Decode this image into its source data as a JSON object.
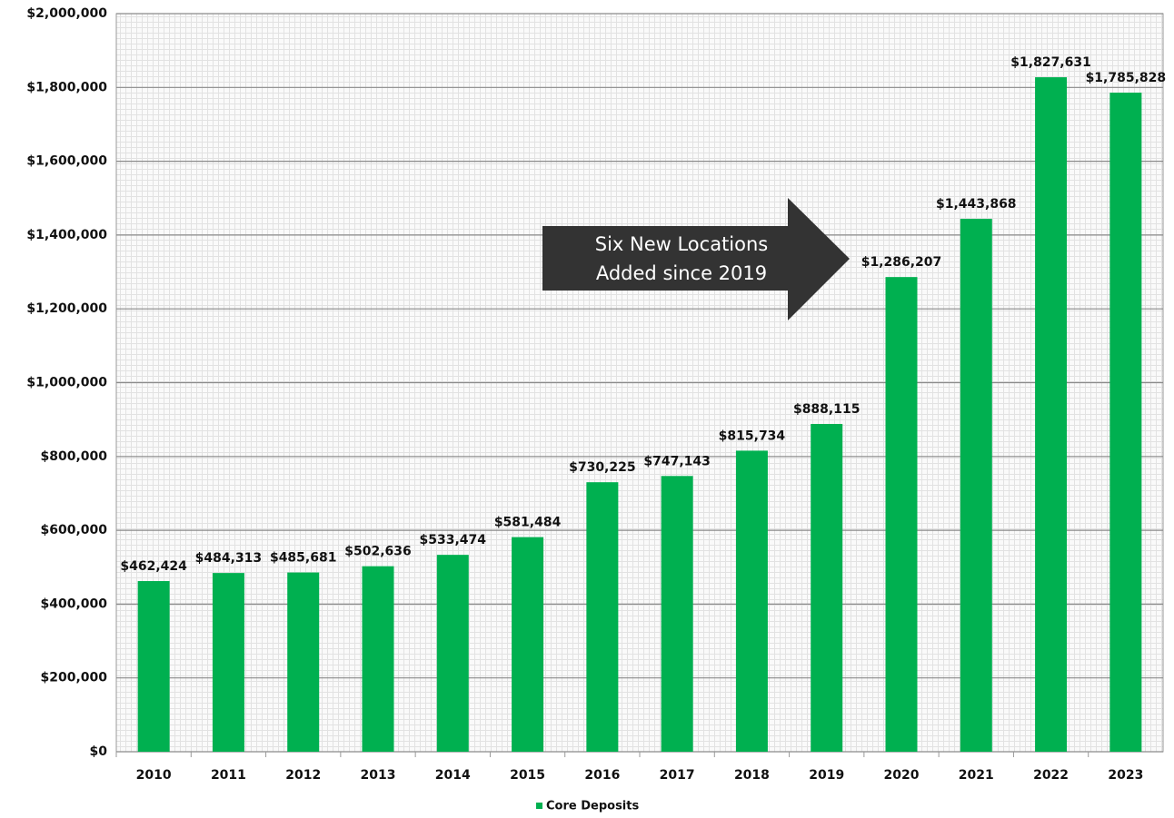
{
  "chart_data": {
    "type": "bar",
    "categories": [
      "2010",
      "2011",
      "2012",
      "2013",
      "2014",
      "2015",
      "2016",
      "2017",
      "2018",
      "2019",
      "2020",
      "2021",
      "2022",
      "2023"
    ],
    "series": [
      {
        "name": "Core Deposits",
        "color": "#00b050",
        "values": [
          462424,
          484313,
          485681,
          502636,
          533474,
          581484,
          730225,
          747143,
          815734,
          888115,
          1286207,
          1443868,
          1827631,
          1785828
        ],
        "value_labels": [
          "$462,424",
          "$484,313",
          "$485,681",
          "$502,636",
          "$533,474",
          "$581,484",
          "$730,225",
          "$747,143",
          "$815,734",
          "$888,115",
          "$1,286,207",
          "$1,443,868",
          "$1,827,631",
          "$1,785,828"
        ]
      }
    ],
    "ylim": [
      0,
      2000000
    ],
    "yticks": [
      {
        "value": 0,
        "label": "$0"
      },
      {
        "value": 200000,
        "label": "$200,000"
      },
      {
        "value": 400000,
        "label": "$400,000"
      },
      {
        "value": 600000,
        "label": "$600,000"
      },
      {
        "value": 800000,
        "label": "$800,000"
      },
      {
        "value": 1000000,
        "label": "$1,000,000"
      },
      {
        "value": 1200000,
        "label": "$1,200,000"
      },
      {
        "value": 1400000,
        "label": "$1,400,000"
      },
      {
        "value": 1600000,
        "label": "$1,600,000"
      },
      {
        "value": 1800000,
        "label": "$1,800,000"
      },
      {
        "value": 2000000,
        "label": "$2,000,000"
      }
    ],
    "grid": true,
    "legend": "bottom",
    "annotation": [
      "Six New Locations",
      "Added since 2019"
    ]
  }
}
